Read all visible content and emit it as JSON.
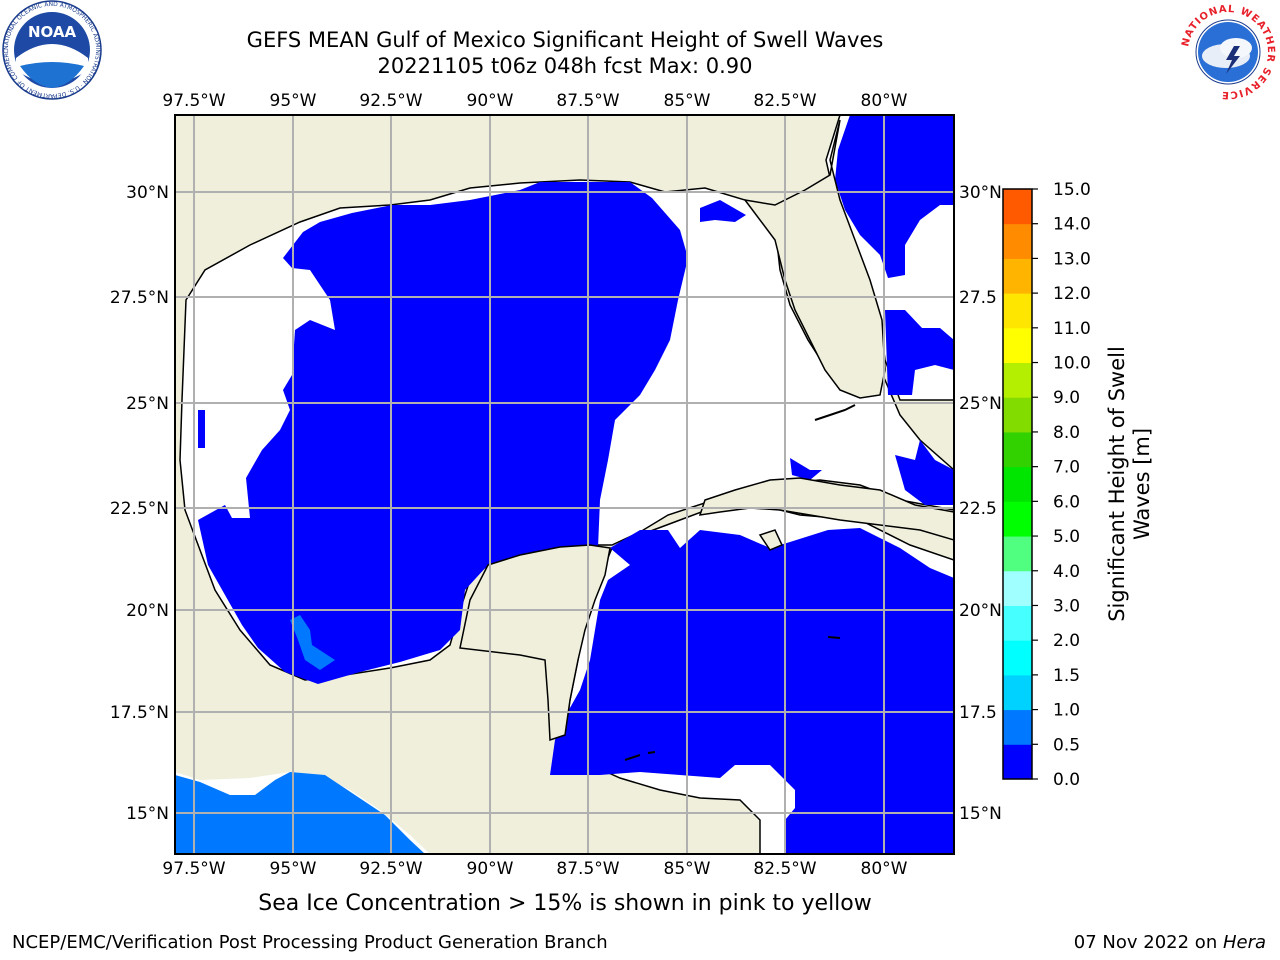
{
  "header": {
    "title_line1": "GEFS MEAN Gulf of Mexico Significant Height of Swell Waves",
    "title_line2": "20221105 t06z 048h fcst   Max: 0.90"
  },
  "logos": {
    "noaa_text": "NOAA",
    "noaa_ring_text": "NATIONAL OCEANIC AND ATMOSPHERIC ADMINISTRATION · U.S. DEPARTMENT OF COMMERCE",
    "nws_ring_text": "NATIONAL WEATHER SERVICE"
  },
  "map": {
    "lon_labels": [
      "97.5°W",
      "95°W",
      "92.5°W",
      "90°W",
      "87.5°W",
      "85°W",
      "82.5°W",
      "80°W"
    ],
    "lat_labels_left": [
      "30°N",
      "27.5°N",
      "25°N",
      "22.5°N",
      "20°N",
      "17.5°N",
      "15°N"
    ],
    "lat_labels_right": [
      "30°N",
      "27.5",
      "25°N",
      "22.5",
      "20°N",
      "17.5",
      "15°N"
    ],
    "colors": {
      "land": "#efefdc",
      "ocean_undefined": "#ffffff",
      "gridline": "#b0b0b0"
    }
  },
  "colorbar": {
    "label": "Significant Height of Swell Waves [m]",
    "label_line1": "Significant Height of Swell",
    "label_line2": "Waves [m]",
    "ticks": [
      "0.0",
      "0.5",
      "1.0",
      "1.5",
      "2.0",
      "3.0",
      "4.0",
      "5.0",
      "6.0",
      "7.0",
      "8.0",
      "9.0",
      "10.0",
      "11.0",
      "12.0",
      "13.0",
      "14.0",
      "15.0"
    ],
    "colors": [
      "#0000ff",
      "#0078ff",
      "#00d2ff",
      "#00ffff",
      "#46ffff",
      "#a0ffff",
      "#50ff80",
      "#00ff00",
      "#00e600",
      "#32d200",
      "#82dc00",
      "#b4ee00",
      "#ffff00",
      "#ffe600",
      "#ffb400",
      "#ff8c00",
      "#ff5a00",
      "#ff0000"
    ]
  },
  "chart_data": {
    "type": "heatmap",
    "title": "GEFS MEAN Gulf of Mexico Significant Height of Swell Waves",
    "subtitle": "20221105 t06z 048h fcst   Max: 0.90",
    "xlim": [
      -98.0,
      -78.5
    ],
    "ylim": [
      14.0,
      31.5
    ],
    "colorbar_label": "Significant Height of Swell Waves [m]",
    "colorbar_range": [
      0.0,
      15.0
    ],
    "max_value": 0.9,
    "regions": [
      {
        "name": "Gulf of Mexico basin",
        "value_range": "0.0-0.5"
      },
      {
        "name": "Pacific coast south of Mexico",
        "value_range": "0.5-1.0"
      },
      {
        "name": "Bay of Campeche patch",
        "value_range": "0.5-1.0"
      },
      {
        "name": "Caribbean Sea",
        "value_range": "0.0-0.5"
      },
      {
        "name": "Atlantic east of Florida",
        "value_range": "0.0-0.5"
      }
    ]
  },
  "notes": {
    "sea_ice": "Sea Ice Concentration > 15% is shown in pink to yellow"
  },
  "footer": {
    "left": "NCEP/EMC/Verification Post Processing Product Generation Branch",
    "right_date": "07 Nov 2022 on ",
    "right_machine": "Hera"
  }
}
